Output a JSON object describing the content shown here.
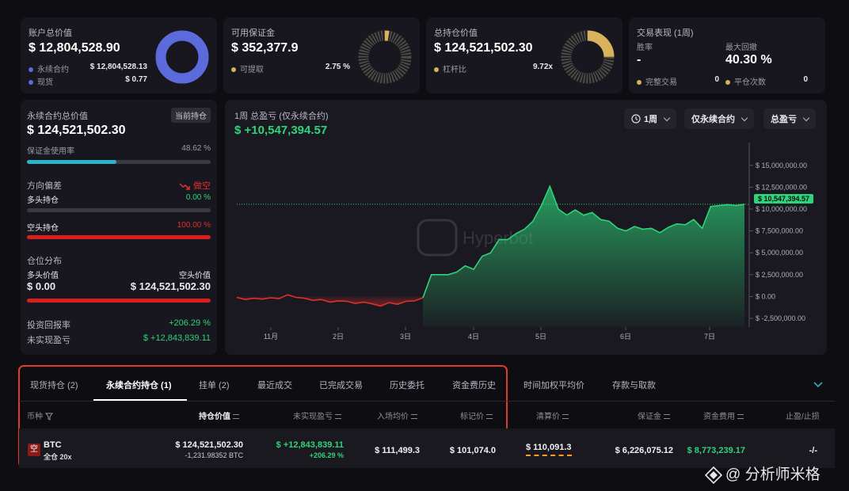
{
  "summary": {
    "account": {
      "title": "账户总价值",
      "value": "$ 12,804,528.90",
      "rows": [
        {
          "label": "永续合约",
          "value": "$ 12,804,528.13",
          "color": "#5b6bdc"
        },
        {
          "label": "现货",
          "value": "$ 0.77",
          "color": "#5b6bdc"
        }
      ]
    },
    "margin": {
      "title": "可用保证金",
      "value": "$ 352,377.9",
      "rows": [
        {
          "label": "可提取",
          "value": "2.75 %",
          "color": "#d9b35c"
        }
      ]
    },
    "position": {
      "title": "总持仓价值",
      "value": "$ 124,521,502.30",
      "rows": [
        {
          "label": "杠杆比",
          "value": "9.72x",
          "color": "#d9b35c"
        }
      ]
    },
    "performance": {
      "title": "交易表现 (1周)",
      "winrate_label": "胜率",
      "winrate_value": "-",
      "drawdown_label": "最大回撤",
      "drawdown_value": "40.30 %",
      "completed_label": "完整交易",
      "completed_value": "0",
      "closed_label": "平仓次数",
      "closed_value": "0"
    }
  },
  "left_panel": {
    "title": "永续合约总价值",
    "badge": "当前持仓",
    "value": "$ 124,521,502.30",
    "margin_usage_label": "保证金使用率",
    "margin_usage_value": "48.62 %",
    "margin_usage_fraction": 0.4862,
    "direction_label": "方向偏差",
    "direction_value": "做空",
    "long_label": "多头持仓",
    "long_value": "0.00 %",
    "short_label": "空头持仓",
    "short_value": "100.00 %",
    "distribution_label": "仓位分布",
    "long_price_label": "多头价值",
    "short_price_label": "空头价值",
    "long_price_value": "$ 0.00",
    "short_price_value": "$ 124,521,502.30",
    "roi_label": "投资回报率",
    "roi_value": "+206.29 %",
    "unrealized_label": "未实现盈亏",
    "unrealized_value": "$ +12,843,839.11"
  },
  "chart_panel": {
    "title": "1周 总盈亏 (仅永续合约)",
    "value": "$ +10,547,394.57",
    "period_button": "1周",
    "filter_button": "仅永续合约",
    "metric_button": "总盈亏",
    "watermark": "Hyperbot",
    "current_tag": "$ 10,547,394.57"
  },
  "chart_data": {
    "type": "area",
    "x_tick_labels": [
      "11月",
      "2日",
      "3日",
      "4日",
      "5日",
      "6日",
      "7日"
    ],
    "y_tick_labels": [
      "$ 15,000,000.00",
      "$ 12,500,000.00",
      "$ 10,000,000.00",
      "$ 7,500,000.00",
      "$ 5,000,000.00",
      "$ 2,500,000.00",
      "$ 0.00",
      "$ -2,500,000.00"
    ],
    "ylim": [
      -3500000,
      16700000
    ],
    "y_ticks": [
      15000000,
      12500000,
      10000000,
      7500000,
      5000000,
      2500000,
      0,
      -2500000
    ],
    "values": [
      -100000,
      -350000,
      -200000,
      -300000,
      -150000,
      -250000,
      200000,
      -100000,
      -200000,
      -450000,
      -350000,
      -650000,
      -500000,
      -550000,
      -800000,
      -650000,
      -850000,
      -1100000,
      -700000,
      -900000,
      -550000,
      -500000,
      -150000,
      2500000,
      2500000,
      2500000,
      2800000,
      3500000,
      3100000,
      4600000,
      5000000,
      6500000,
      6500000,
      7200000,
      7700000,
      8600000,
      10400000,
      12600000,
      10000000,
      9300000,
      9900000,
      9300000,
      9600000,
      8800000,
      8600000,
      7800000,
      7500000,
      8000000,
      7700000,
      7800000,
      7300000,
      7900000,
      8300000,
      8200000,
      8800000,
      7800000,
      10300000,
      10400000,
      10500000,
      10400000,
      10547394
    ],
    "positive_color": "#2ed47a",
    "negative_color": "#e0302b"
  },
  "tabs": [
    {
      "label": "现货持仓 (2)",
      "active": false
    },
    {
      "label": "永续合约持仓 (1)",
      "active": true
    },
    {
      "label": "挂单 (2)",
      "active": false
    },
    {
      "label": "最近成交",
      "active": false
    },
    {
      "label": "已完成交易",
      "active": false
    },
    {
      "label": "历史委托",
      "active": false
    },
    {
      "label": "资金费历史",
      "active": false
    },
    {
      "label": "时间加权平均价",
      "active": false
    },
    {
      "label": "存款与取款",
      "active": false
    }
  ],
  "table": {
    "headers": {
      "coin": "币种",
      "position_value": "持仓价值",
      "unrealized": "未实现盈亏",
      "entry": "入场均价",
      "mark": "标记价",
      "liquidation": "清算价",
      "margin": "保证金",
      "funding": "资金费用",
      "tpsl": "止盈/止损"
    },
    "row": {
      "coin_badge": "空",
      "coin": "BTC",
      "mode": "全仓 20x",
      "position_value": "$ 124,521,502.30",
      "position_size": "-1,231.98352 BTC",
      "unrealized": "$ +12,843,839.11",
      "unrealized_pct": "+206.29 %",
      "entry": "$ 111,499.3",
      "mark": "$ 101,074.0",
      "liquidation": "$ 110,091.3",
      "margin": "$ 6,226,075.12",
      "funding": "$ 8,773,239.17",
      "tpsl": "-/-"
    }
  },
  "watermark_footer": "@ 分析师米格"
}
